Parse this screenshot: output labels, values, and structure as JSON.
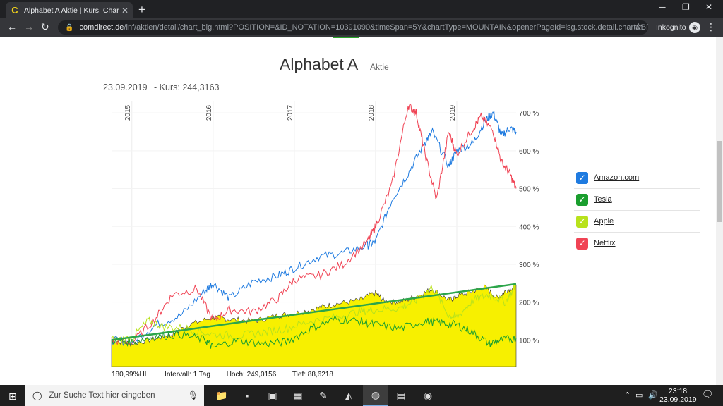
{
  "browser": {
    "tab_title": "Alphabet A Aktie | Kurs, Charts &",
    "favicon": "C",
    "url_host": "comdirect.de",
    "url_path": "/inf/aktien/detail/chart_big.html?POSITION=&ID_NOTATION=10391090&timeSpan=5Y&chartType=MOUNTAIN&openerPageId=lsg.stock.detail.chart&BR...",
    "incognito_label": "Inkognito"
  },
  "page": {
    "title": "Alphabet A",
    "subtitle": "Aktie",
    "date": "23.09.2019",
    "kurs": "- Kurs: 244,3163"
  },
  "info": {
    "hl": "180,99%HL",
    "intervall": "Intervall: 1 Tag",
    "hoch": "Hoch: 249,0156",
    "tief": "Tief: 88,6218"
  },
  "legend": [
    {
      "label": "Amazon.com",
      "color": "#1f7be0"
    },
    {
      "label": "Tesla",
      "color": "#1a9e2e"
    },
    {
      "label": "Apple",
      "color": "#b8e21c"
    },
    {
      "label": "Netflix",
      "color": "#f04354"
    }
  ],
  "chart_data": {
    "type": "area",
    "x_ticks": [
      "2015",
      "2016",
      "2017",
      "2018",
      "2019"
    ],
    "y_ticks": [
      "100 %",
      "200 %",
      "300 %",
      "400 %",
      "500 %",
      "600 %",
      "700 %"
    ],
    "ylim": [
      30,
      730
    ],
    "xlim": [
      2014.75,
      2019.73
    ],
    "main_series": {
      "name": "Alphabet A",
      "fill": "#f7f000",
      "x": [
        2014.75,
        2015.0,
        2015.3,
        2015.5,
        2015.7,
        2016.0,
        2016.2,
        2016.5,
        2016.8,
        2017.0,
        2017.3,
        2017.5,
        2017.8,
        2018.0,
        2018.1,
        2018.3,
        2018.5,
        2018.7,
        2018.9,
        2019.0,
        2019.2,
        2019.35,
        2019.5,
        2019.6,
        2019.73
      ],
      "y": [
        100,
        90,
        105,
        115,
        140,
        160,
        155,
        150,
        165,
        170,
        185,
        195,
        205,
        225,
        205,
        200,
        215,
        235,
        205,
        215,
        230,
        240,
        210,
        230,
        244
      ]
    },
    "trend_line": {
      "color": "#2ca54a",
      "x": [
        2014.75,
        2019.73
      ],
      "y": [
        100,
        248
      ]
    },
    "series": [
      {
        "name": "Amazon.com",
        "color": "#1f7be0",
        "x": [
          2014.75,
          2015.0,
          2015.3,
          2015.6,
          2015.9,
          2016.0,
          2016.2,
          2016.5,
          2016.8,
          2017.0,
          2017.3,
          2017.6,
          2017.9,
          2018.0,
          2018.2,
          2018.4,
          2018.6,
          2018.7,
          2018.9,
          2019.0,
          2019.2,
          2019.35,
          2019.45,
          2019.55,
          2019.65,
          2019.73
        ],
        "y": [
          100,
          95,
          140,
          165,
          230,
          250,
          210,
          255,
          270,
          290,
          320,
          330,
          350,
          360,
          470,
          540,
          620,
          650,
          560,
          600,
          620,
          680,
          700,
          640,
          660,
          650
        ]
      },
      {
        "name": "Netflix",
        "color": "#f04354",
        "x": [
          2014.75,
          2015.0,
          2015.3,
          2015.5,
          2015.8,
          2016.0,
          2016.2,
          2016.5,
          2016.8,
          2017.0,
          2017.3,
          2017.6,
          2017.9,
          2018.0,
          2018.2,
          2018.4,
          2018.5,
          2018.6,
          2018.75,
          2018.9,
          2019.0,
          2019.2,
          2019.3,
          2019.45,
          2019.55,
          2019.65,
          2019.73
        ],
        "y": [
          100,
          92,
          160,
          220,
          235,
          150,
          180,
          175,
          210,
          260,
          270,
          300,
          360,
          400,
          510,
          720,
          700,
          600,
          470,
          650,
          590,
          660,
          690,
          650,
          570,
          540,
          500
        ]
      },
      {
        "name": "Apple",
        "color": "#b8e21c",
        "x": [
          2014.75,
          2015.0,
          2015.2,
          2015.4,
          2015.7,
          2016.0,
          2016.3,
          2016.6,
          2016.9,
          2017.2,
          2017.5,
          2017.8,
          2018.0,
          2018.3,
          2018.5,
          2018.7,
          2018.9,
          2019.0,
          2019.2,
          2019.4,
          2019.6,
          2019.73
        ],
        "y": [
          100,
          105,
          150,
          135,
          130,
          115,
          110,
          120,
          130,
          150,
          160,
          175,
          180,
          185,
          205,
          240,
          165,
          160,
          205,
          220,
          200,
          245
        ]
      },
      {
        "name": "Tesla",
        "color": "#1a9e2e",
        "x": [
          2014.75,
          2015.0,
          2015.3,
          2015.6,
          2015.9,
          2016.0,
          2016.3,
          2016.6,
          2016.9,
          2017.2,
          2017.5,
          2017.8,
          2018.0,
          2018.3,
          2018.6,
          2018.8,
          2019.0,
          2019.2,
          2019.4,
          2019.55,
          2019.73
        ],
        "y": [
          100,
          95,
          110,
          115,
          100,
          80,
          100,
          90,
          95,
          130,
          155,
          150,
          140,
          130,
          150,
          145,
          140,
          120,
          90,
          100,
          105
        ]
      }
    ]
  },
  "taskbar": {
    "search_placeholder": "Zur Suche Text hier eingeben",
    "time": "23:18",
    "date": "23.09.2019"
  }
}
